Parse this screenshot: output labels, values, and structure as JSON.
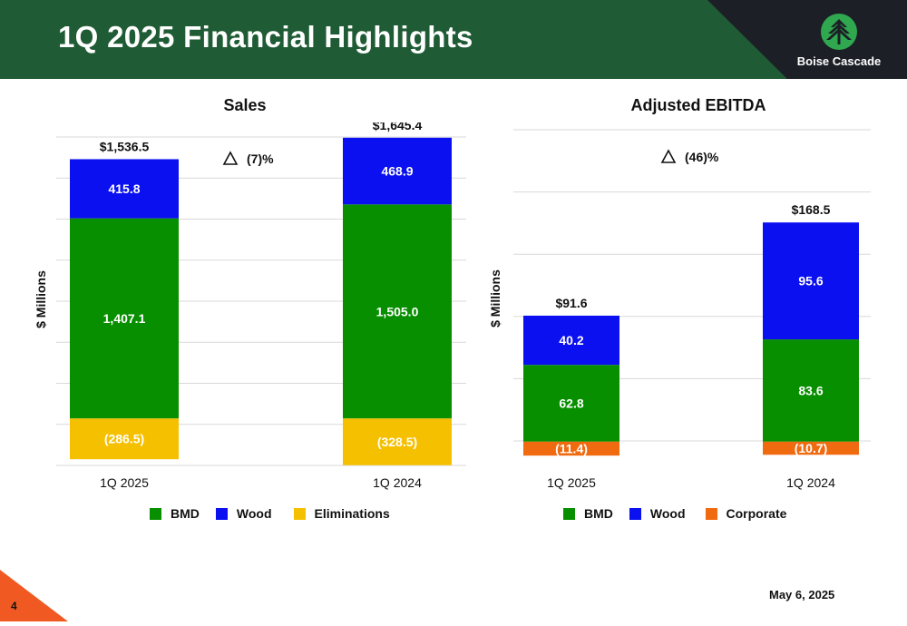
{
  "header": {
    "title": "1Q 2025 Financial Highlights",
    "logo_text": "Boise Cascade"
  },
  "footer": {
    "page_number": "4",
    "date": "May 6, 2025"
  },
  "colors": {
    "BMD": "#078f00",
    "Wood": "#0a10f0",
    "Eliminations": "#f5c000",
    "Corporate": "#f06a10",
    "header_green": "#1f5b34"
  },
  "chart_data": [
    {
      "type": "bar",
      "stacked": true,
      "title": "Sales",
      "ylabel": "$ Millions",
      "change_label": "(7)%",
      "categories": [
        "1Q 2025",
        "1Q 2024"
      ],
      "series": [
        {
          "name": "BMD",
          "values": [
            1407.1,
            1505.0
          ],
          "labels": [
            "1,407.1",
            "1,505.0"
          ]
        },
        {
          "name": "Wood",
          "values": [
            415.8,
            468.9
          ],
          "labels": [
            "415.8",
            "468.9"
          ]
        },
        {
          "name": "Eliminations",
          "values": [
            -286.5,
            -328.5
          ],
          "labels": [
            "(286.5)",
            "(328.5)"
          ]
        }
      ],
      "totals": [
        "$1,536.5",
        "$1,645.4"
      ],
      "ylim": [
        -330,
        2030
      ],
      "grid": true,
      "legend": "bottom"
    },
    {
      "type": "bar",
      "stacked": true,
      "title": "Adjusted EBITDA",
      "ylabel": "$ Millions",
      "change_label": "(46)%",
      "categories": [
        "1Q 2025",
        "1Q 2024"
      ],
      "series": [
        {
          "name": "BMD",
          "values": [
            62.8,
            83.6
          ],
          "labels": [
            "62.8",
            "83.6"
          ]
        },
        {
          "name": "Wood",
          "values": [
            40.2,
            95.6
          ],
          "labels": [
            "40.2",
            "95.6"
          ]
        },
        {
          "name": "Corporate",
          "values": [
            -11.4,
            -10.7
          ],
          "labels": [
            "(11.4)",
            "(10.7)"
          ]
        }
      ],
      "totals": [
        "$91.6",
        "$168.5"
      ],
      "ylim": [
        -12,
        255
      ],
      "grid": true,
      "legend": "bottom"
    }
  ]
}
